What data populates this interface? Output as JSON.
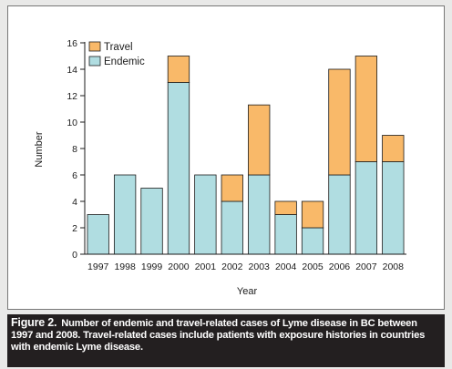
{
  "chart_data": {
    "type": "bar",
    "stacked": true,
    "categories": [
      "1997",
      "1998",
      "1999",
      "2000",
      "2001",
      "2002",
      "2003",
      "2004",
      "2005",
      "2006",
      "2007",
      "2008"
    ],
    "series": [
      {
        "name": "Endemic",
        "color": "#b0dde1",
        "values": [
          3,
          6,
          5,
          13,
          6,
          4,
          6,
          3,
          2,
          6,
          7,
          7
        ]
      },
      {
        "name": "Travel",
        "color": "#f9b969",
        "values": [
          0,
          0,
          0,
          2,
          0,
          2,
          5.3,
          1,
          2,
          8,
          8,
          2
        ]
      }
    ],
    "xlabel": "Year",
    "ylabel": "Number",
    "ylim": [
      0,
      16
    ],
    "yticks": [
      "0",
      "2",
      "4",
      "6",
      "8",
      "10",
      "12",
      "14",
      "16"
    ],
    "grid": false,
    "legend_position": "top-left"
  },
  "caption": {
    "label": "Figure 2.",
    "text": "Number of endemic and travel-related cases of Lyme disease in BC between 1997 and 2008. Travel-related cases include patients with exposure histories in countries with endemic Lyme disease."
  }
}
